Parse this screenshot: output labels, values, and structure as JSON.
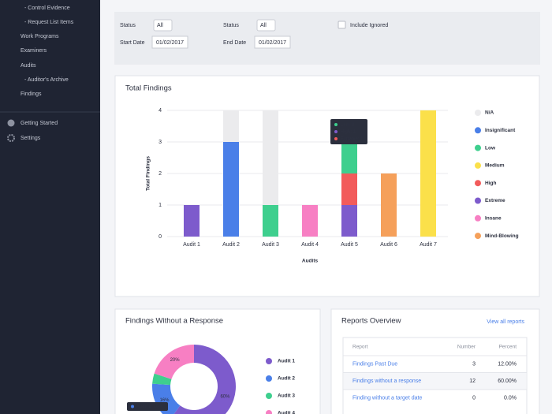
{
  "sidebar": {
    "items": [
      "- Control Evidence",
      "- Request List Items",
      "Work Programs",
      "Examiners",
      "Audits",
      "- Auditor's Archive",
      "Findings"
    ],
    "footer": [
      "Getting Started",
      "Settings"
    ]
  },
  "filters": [
    {
      "label": "Status",
      "value": "All"
    },
    {
      "label": "Status",
      "value": "All"
    },
    {
      "label": "Start Date",
      "value": "01/02/2017"
    },
    {
      "label": "End Date",
      "value": "01/02/2017"
    },
    "Include Ignored"
  ],
  "chart_data": [
    {
      "type": "bar",
      "stacked": true,
      "title": "Total Findings",
      "xlabel": "Audits",
      "ylabel": "Total Findings",
      "categories": [
        "Audit 1",
        "Audit 2",
        "Audit 3",
        "Audit 4",
        "Audit 5",
        "Audit 6",
        "Audit 7"
      ],
      "series": [
        {
          "name": "N/A",
          "color": "#ebebed",
          "values": [
            0,
            1,
            3,
            0,
            0,
            0,
            0
          ]
        },
        {
          "name": "Insignificant",
          "color": "#4a7fe8",
          "values": [
            0,
            3,
            0,
            0,
            0,
            0,
            0
          ]
        },
        {
          "name": "Low",
          "color": "#3ecf8e",
          "values": [
            0,
            0,
            1,
            0,
            1,
            0,
            0
          ]
        },
        {
          "name": "Medium",
          "color": "#fbe04a",
          "values": [
            0,
            0,
            0,
            0,
            0,
            0,
            4
          ]
        },
        {
          "name": "High",
          "color": "#f25b5b",
          "values": [
            0,
            0,
            0,
            0,
            1,
            0,
            0
          ]
        },
        {
          "name": "Extreme",
          "color": "#7d5bcc",
          "values": [
            1,
            0,
            0,
            0,
            1,
            0,
            0
          ]
        },
        {
          "name": "Insane",
          "color": "#f77fc3",
          "values": [
            0,
            0,
            0,
            1,
            0,
            0,
            0
          ]
        },
        {
          "name": "Mind-Blowing",
          "color": "#f5a05a",
          "values": [
            0,
            0,
            0,
            0,
            0,
            2,
            0
          ]
        }
      ],
      "ylim": [
        0,
        4
      ],
      "yticks": [
        0,
        1,
        2,
        3,
        4
      ],
      "grid": true,
      "legend": "right",
      "tooltip": [
        "Low: 1",
        "High: 1",
        "Extreme: 1"
      ]
    },
    {
      "type": "pie",
      "donut": true,
      "title": "Findings Without a Response",
      "categories": [
        "Audit 1",
        "Audit 2",
        "Audit 3",
        "Audit 4"
      ],
      "values": [
        60,
        16,
        4,
        20
      ],
      "value_labels": [
        "60%",
        "16%",
        null,
        "20%"
      ],
      "colors": [
        "#7d5bcc",
        "#4a7fe8",
        "#3ecf8e",
        "#f77fc3"
      ],
      "legend": "right",
      "tooltip": "Audit 2: 16%"
    }
  ],
  "reports": {
    "title": "Reports Overview",
    "link": "View all reports",
    "columns": [
      "Report",
      "Number",
      "Percent"
    ],
    "rows": [
      [
        "Findings Past Due",
        3,
        "12.00%"
      ],
      [
        "Findings without a response",
        12,
        "60.00%"
      ],
      [
        "Finding without a target date",
        0,
        "0.0%"
      ]
    ]
  }
}
